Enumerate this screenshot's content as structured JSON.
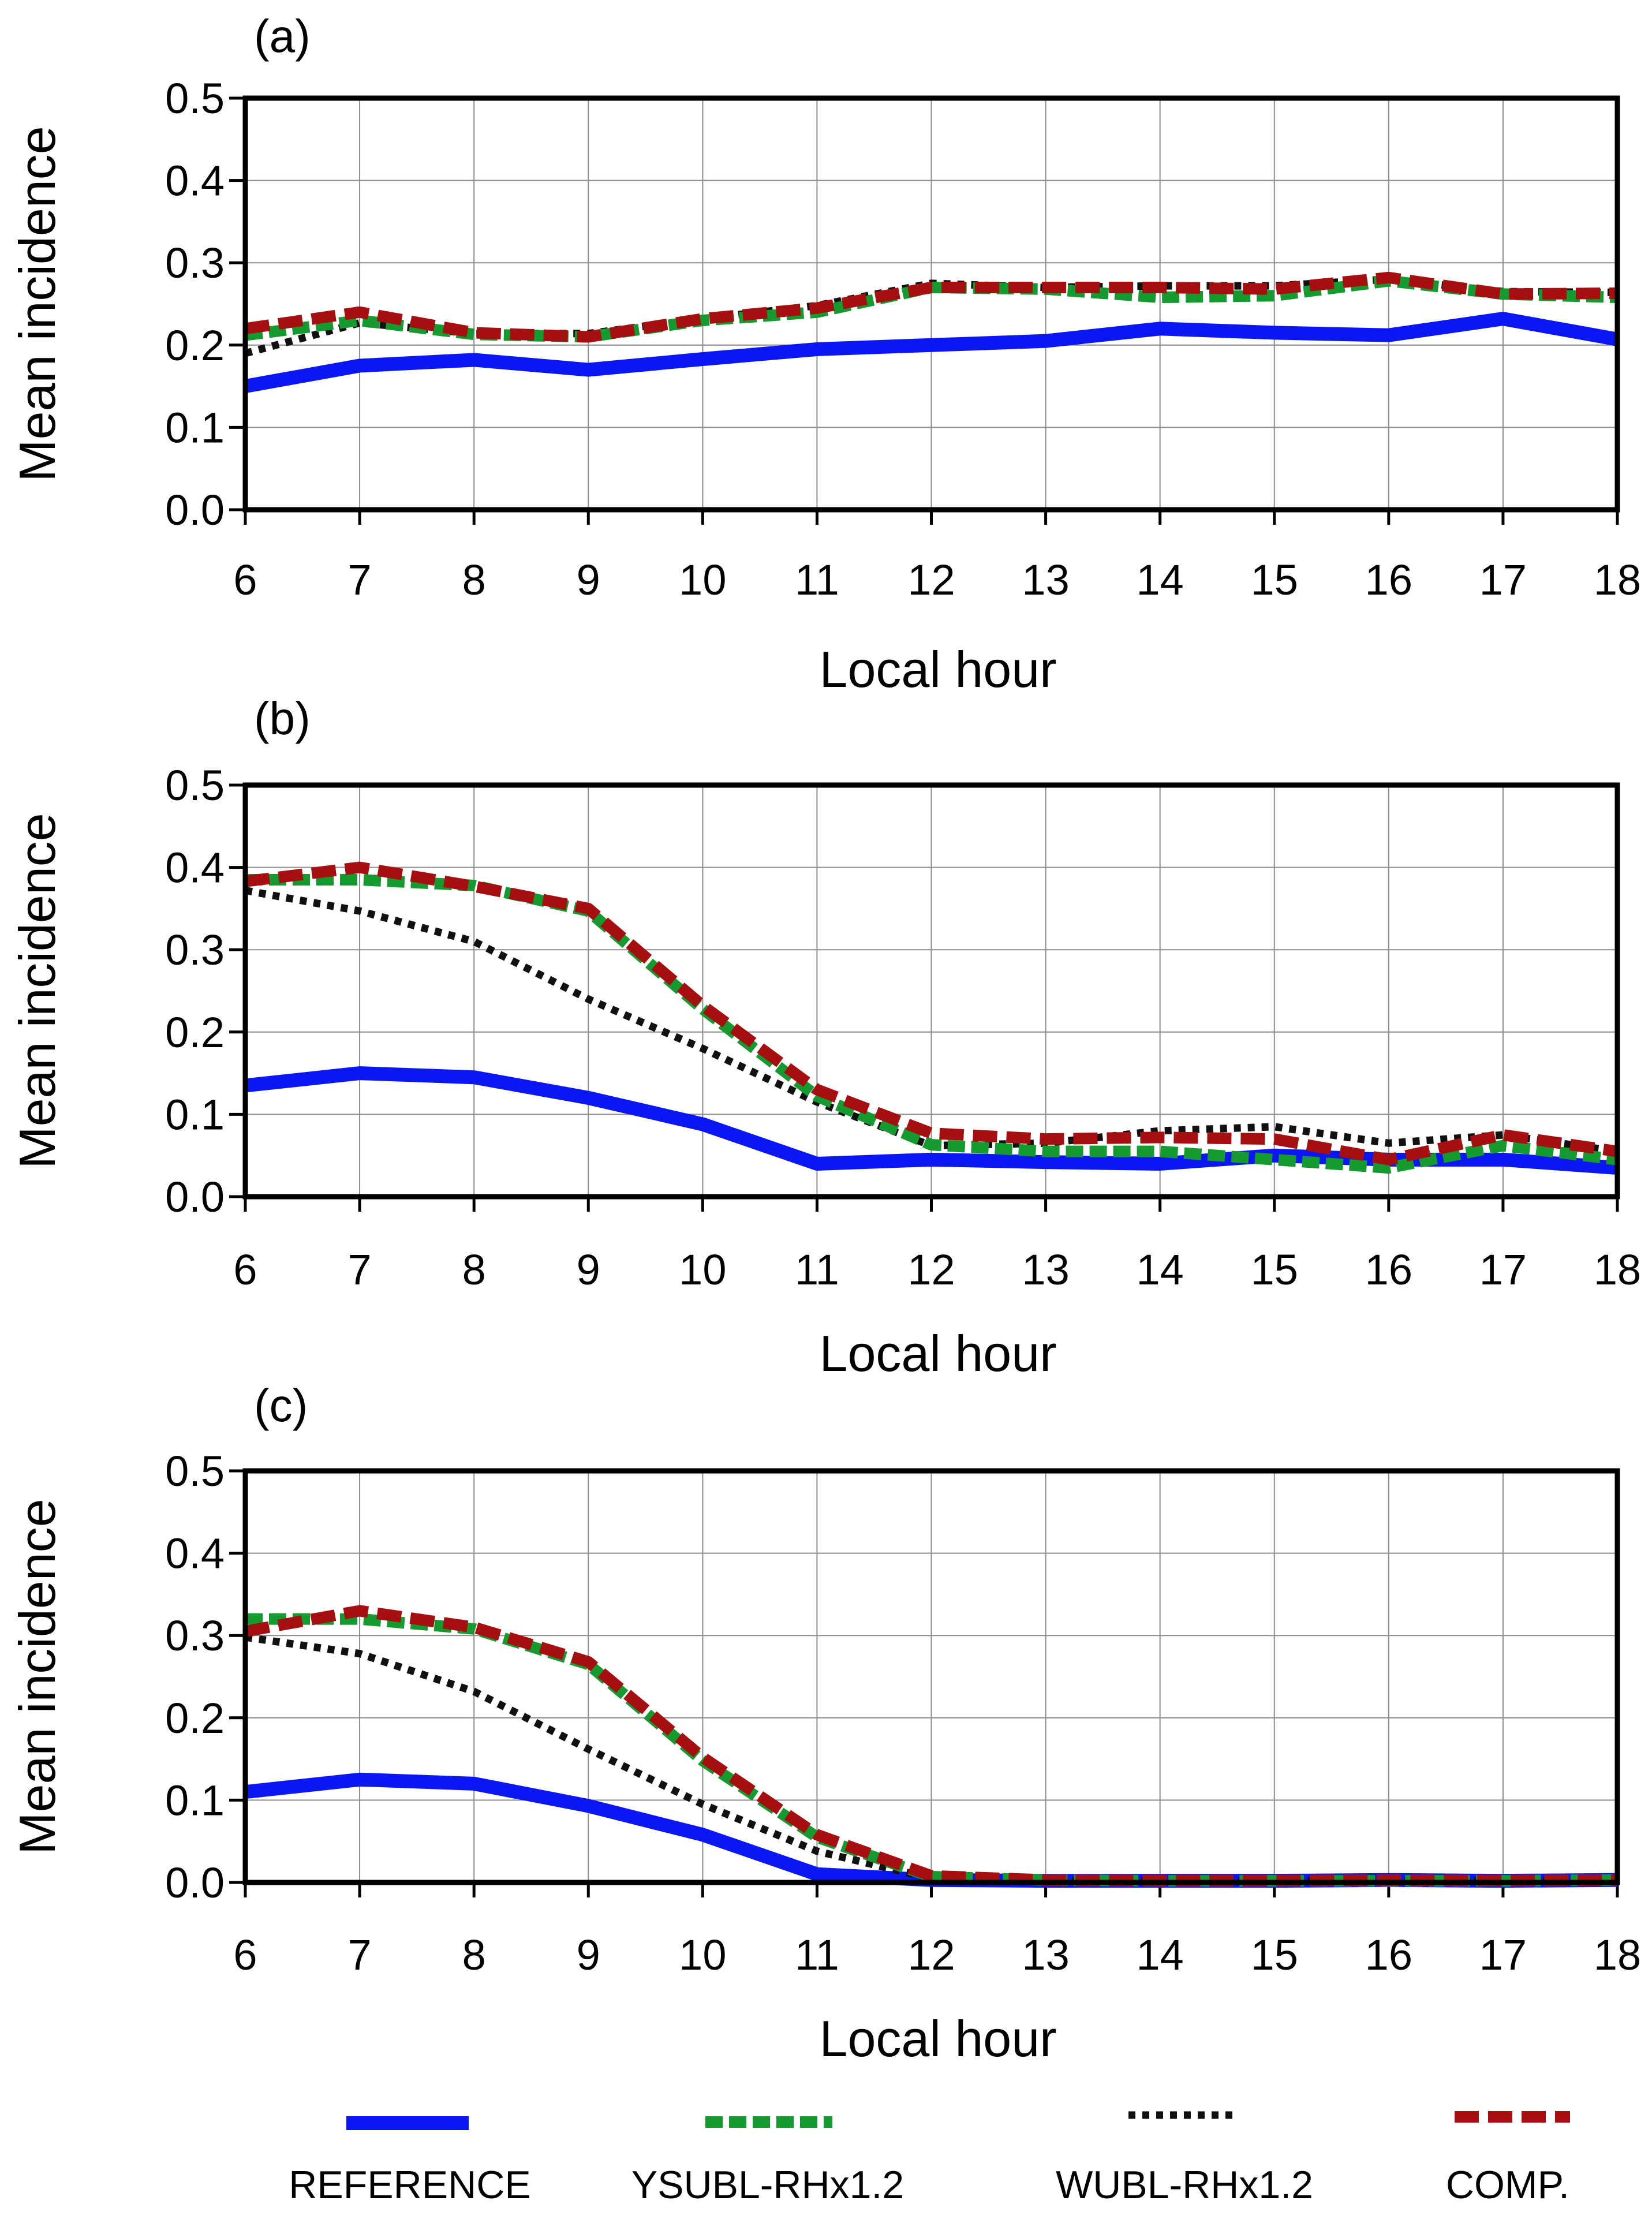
{
  "colors": {
    "reference": "#0a17f2",
    "ysubl": "#149a2e",
    "wubl": "#111111",
    "comp": "#a60f10",
    "grid": "#8c8c8c",
    "frame": "#000000"
  },
  "legend": {
    "labels": [
      "REFERENCE",
      "YSUBL-RHx1.2",
      "WUBL-RHx1.2",
      "COMP."
    ]
  },
  "chart_data": [
    {
      "type": "line",
      "panel_label": "(a)",
      "xlabel": "Local hour",
      "ylabel": "Mean incidence",
      "xlim": [
        6,
        18
      ],
      "ylim": [
        0,
        0.5
      ],
      "x": [
        6,
        7,
        8,
        9,
        10,
        11,
        12,
        13,
        14,
        15,
        16,
        17,
        18
      ],
      "x_ticks": [
        "6",
        "7",
        "8",
        "9",
        "10",
        "11",
        "12",
        "13",
        "14",
        "15",
        "16",
        "17",
        "18"
      ],
      "y_ticks": [
        "0.0",
        "0.1",
        "0.2",
        "0.3",
        "0.4",
        "0.5"
      ],
      "grid": true,
      "series": [
        {
          "name": "REFERENCE",
          "values": [
            0.15,
            0.175,
            0.182,
            0.17,
            0.183,
            0.195,
            0.2,
            0.205,
            0.22,
            0.215,
            0.212,
            0.232,
            0.207
          ]
        },
        {
          "name": "YSUBL-RHx1.2",
          "values": [
            0.212,
            0.23,
            0.213,
            0.21,
            0.23,
            0.24,
            0.27,
            0.268,
            0.258,
            0.26,
            0.278,
            0.262,
            0.258
          ]
        },
        {
          "name": "WUBL-RHx1.2",
          "values": [
            0.19,
            0.227,
            0.214,
            0.214,
            0.232,
            0.248,
            0.275,
            0.27,
            0.272,
            0.272,
            0.28,
            0.265,
            0.264
          ]
        },
        {
          "name": "COMP.",
          "values": [
            0.22,
            0.24,
            0.215,
            0.21,
            0.232,
            0.245,
            0.27,
            0.27,
            0.27,
            0.268,
            0.282,
            0.262,
            0.263
          ]
        }
      ]
    },
    {
      "type": "line",
      "panel_label": "(b)",
      "xlabel": "Local hour",
      "ylabel": "Mean incidence",
      "xlim": [
        6,
        18
      ],
      "ylim": [
        0,
        0.5
      ],
      "x": [
        6,
        7,
        8,
        9,
        10,
        11,
        12,
        13,
        14,
        15,
        16,
        17,
        18
      ],
      "x_ticks": [
        "6",
        "7",
        "8",
        "9",
        "10",
        "11",
        "12",
        "13",
        "14",
        "15",
        "16",
        "17",
        "18"
      ],
      "y_ticks": [
        "0.0",
        "0.1",
        "0.2",
        "0.3",
        "0.4",
        "0.5"
      ],
      "grid": true,
      "series": [
        {
          "name": "REFERENCE",
          "values": [
            0.135,
            0.15,
            0.145,
            0.12,
            0.088,
            0.04,
            0.045,
            0.042,
            0.04,
            0.05,
            0.045,
            0.045,
            0.035
          ]
        },
        {
          "name": "YSUBL-RHx1.2",
          "values": [
            0.385,
            0.385,
            0.378,
            0.347,
            0.228,
            0.122,
            0.063,
            0.055,
            0.055,
            0.045,
            0.035,
            0.062,
            0.045
          ]
        },
        {
          "name": "WUBL-RHx1.2",
          "values": [
            0.372,
            0.347,
            0.31,
            0.24,
            0.18,
            0.115,
            0.062,
            0.065,
            0.08,
            0.085,
            0.065,
            0.075,
            0.055
          ]
        },
        {
          "name": "COMP.",
          "values": [
            0.383,
            0.4,
            0.377,
            0.35,
            0.232,
            0.13,
            0.077,
            0.07,
            0.072,
            0.07,
            0.045,
            0.075,
            0.055
          ]
        }
      ]
    },
    {
      "type": "line",
      "panel_label": "(c)",
      "xlabel": "Local hour",
      "ylabel": "Mean incidence",
      "xlim": [
        6,
        18
      ],
      "ylim": [
        0,
        0.5
      ],
      "x": [
        6,
        7,
        8,
        9,
        10,
        11,
        12,
        13,
        14,
        15,
        16,
        17,
        18
      ],
      "x_ticks": [
        "6",
        "7",
        "8",
        "9",
        "10",
        "11",
        "12",
        "13",
        "14",
        "15",
        "16",
        "17",
        "18"
      ],
      "y_ticks": [
        "0.0",
        "0.1",
        "0.2",
        "0.3",
        "0.4",
        "0.5"
      ],
      "grid": true,
      "series": [
        {
          "name": "REFERENCE",
          "values": [
            0.11,
            0.125,
            0.12,
            0.093,
            0.058,
            0.01,
            0.003,
            0.002,
            0.002,
            0.002,
            0.003,
            0.002,
            0.003
          ]
        },
        {
          "name": "YSUBL-RHx1.2",
          "values": [
            0.32,
            0.32,
            0.308,
            0.265,
            0.148,
            0.055,
            0.007,
            0.003,
            0.002,
            0.002,
            0.002,
            0.002,
            0.003
          ]
        },
        {
          "name": "WUBL-RHx1.2",
          "values": [
            0.298,
            0.278,
            0.232,
            0.162,
            0.095,
            0.038,
            0.005,
            0.002,
            0.002,
            0.002,
            0.002,
            0.002,
            0.002
          ]
        },
        {
          "name": "COMP.",
          "values": [
            0.305,
            0.33,
            0.31,
            0.268,
            0.152,
            0.058,
            0.008,
            0.003,
            0.002,
            0.002,
            0.003,
            0.002,
            0.003
          ]
        }
      ]
    }
  ]
}
